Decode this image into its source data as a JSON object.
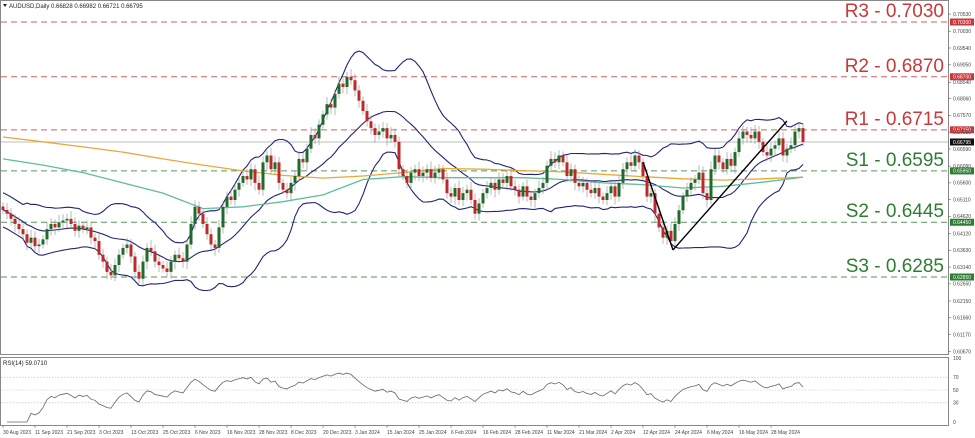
{
  "header": {
    "symbol_line": "AUDUSD,Daily  0.66828 0.66982 0.66721 0.66795"
  },
  "rsi_header": "RSI(14) 59.0710",
  "colors": {
    "resistance": "#c8383a",
    "support": "#2e7d32",
    "bull": "#1f6b2a",
    "bear": "#c0282a",
    "bands": "#23237a",
    "ma_slow": "#e8a93a",
    "ma_fast": "#5fbf98",
    "rsi": "#666666"
  },
  "chart_data": {
    "type": "candlestick",
    "title": "AUDUSD,Daily",
    "ylim": [
      0.6067,
      0.7053
    ],
    "y_ticks": [
      "0.70530",
      "0.70030",
      "0.69540",
      "0.69050",
      "0.68540",
      "0.68060",
      "0.67570",
      "0.67080",
      "0.66590",
      "0.66090",
      "0.65600",
      "0.65110",
      "0.64620",
      "0.64120",
      "0.63630",
      "0.63140",
      "0.62650",
      "0.62150",
      "0.61660",
      "0.61170",
      "0.60670"
    ],
    "x_labels": [
      "30 Aug 2023",
      "11 Sep 2023",
      "21 Sep 2023",
      "3 Oct 2023",
      "13 Oct 2023",
      "25 Oct 2023",
      "6 Nov 2023",
      "16 Nov 2023",
      "28 Nov 2023",
      "8 Dec 2023",
      "20 Dec 2023",
      "3 Jan 2024",
      "15 Jan 2024",
      "25 Jan 2024",
      "6 Feb 2024",
      "16 Feb 2024",
      "28 Feb 2024",
      "11 Mar 2024",
      "21 Mar 2024",
      "2 Apr 2024",
      "12 Apr 2024",
      "24 Apr 2024",
      "6 May 2024",
      "16 May 2024",
      "28 May 2024"
    ],
    "closes": [
      0.6481,
      0.647,
      0.6455,
      0.644,
      0.6425,
      0.641,
      0.6385,
      0.64,
      0.6375,
      0.638,
      0.6395,
      0.6425,
      0.644,
      0.643,
      0.6445,
      0.645,
      0.6455,
      0.644,
      0.642,
      0.6435,
      0.6425,
      0.643,
      0.64,
      0.639,
      0.635,
      0.633,
      0.63,
      0.629,
      0.632,
      0.635,
      0.637,
      0.638,
      0.6345,
      0.63,
      0.628,
      0.633,
      0.637,
      0.636,
      0.633,
      0.632,
      0.631,
      0.63,
      0.633,
      0.635,
      0.634,
      0.633,
      0.638,
      0.644,
      0.649,
      0.647,
      0.644,
      0.641,
      0.638,
      0.637,
      0.643,
      0.649,
      0.652,
      0.651,
      0.654,
      0.656,
      0.658,
      0.657,
      0.66,
      0.656,
      0.654,
      0.662,
      0.664,
      0.66,
      0.662,
      0.656,
      0.654,
      0.653,
      0.656,
      0.658,
      0.663,
      0.662,
      0.666,
      0.67,
      0.669,
      0.673,
      0.676,
      0.679,
      0.678,
      0.682,
      0.685,
      0.684,
      0.687,
      0.686,
      0.683,
      0.68,
      0.677,
      0.674,
      0.672,
      0.67,
      0.671,
      0.672,
      0.669,
      0.67,
      0.668,
      0.66,
      0.658,
      0.656,
      0.659,
      0.66,
      0.658,
      0.659,
      0.66,
      0.6575,
      0.659,
      0.66,
      0.657,
      0.653,
      0.652,
      0.6545,
      0.651,
      0.653,
      0.654,
      0.651,
      0.647,
      0.65,
      0.653,
      0.6545,
      0.656,
      0.654,
      0.657,
      0.656,
      0.658,
      0.655,
      0.654,
      0.652,
      0.655,
      0.652,
      0.651,
      0.653,
      0.6545,
      0.656,
      0.661,
      0.663,
      0.662,
      0.664,
      0.662,
      0.658,
      0.66,
      0.656,
      0.655,
      0.656,
      0.654,
      0.653,
      0.6545,
      0.652,
      0.651,
      0.653,
      0.655,
      0.652,
      0.656,
      0.66,
      0.662,
      0.661,
      0.664,
      0.662,
      0.658,
      0.652,
      0.653,
      0.647,
      0.643,
      0.64,
      0.642,
      0.639,
      0.644,
      0.648,
      0.652,
      0.654,
      0.656,
      0.657,
      0.659,
      0.653,
      0.651,
      0.66,
      0.664,
      0.662,
      0.66,
      0.663,
      0.661,
      0.665,
      0.669,
      0.671,
      0.67,
      0.669,
      0.671,
      0.668,
      0.665,
      0.664,
      0.666,
      0.667,
      0.669,
      0.664,
      0.666,
      0.667,
      0.671,
      0.672,
      0.66795
    ],
    "ma_slow_every_10_bars": [
      0.6694,
      0.668,
      0.6665,
      0.665,
      0.663,
      0.6612,
      0.6595,
      0.6582,
      0.6574,
      0.658,
      0.659,
      0.6602,
      0.66,
      0.6596,
      0.6592,
      0.6585,
      0.6578,
      0.6572,
      0.6568,
      0.6572,
      0.6577
    ],
    "ma_fast_every_10_bars": [
      0.663,
      0.6612,
      0.659,
      0.656,
      0.653,
      0.6485,
      0.649,
      0.6505,
      0.6525,
      0.657,
      0.6578,
      0.6575,
      0.6575,
      0.6575,
      0.657,
      0.656,
      0.6555,
      0.6545,
      0.655,
      0.6562,
      0.6577
    ],
    "current_price": {
      "value": 0.66795,
      "badge": "0.66795"
    },
    "levels": [
      {
        "name": "R3",
        "label": "R3 - 0.7030",
        "value": 0.703,
        "badge": "0.70300",
        "kind": "resistance"
      },
      {
        "name": "R2",
        "label": "R2 - 0.6870",
        "value": 0.687,
        "badge": "0.68700",
        "kind": "resistance"
      },
      {
        "name": "R1",
        "label": "R1 - 0.6715",
        "value": 0.6715,
        "badge": "0.67150",
        "kind": "resistance"
      },
      {
        "name": "S1",
        "label": "S1 - 0.6595",
        "value": 0.6595,
        "badge": "0.65950",
        "kind": "support"
      },
      {
        "name": "S2",
        "label": "S2 - 0.6445",
        "value": 0.6445,
        "badge": "0.64450",
        "kind": "support"
      },
      {
        "name": "S3",
        "label": "S3 - 0.6285",
        "value": 0.6285,
        "badge": "0.62850",
        "kind": "support"
      }
    ],
    "trendlines": [
      {
        "from": {
          "bar": 160,
          "price": 0.6621
        },
        "to": {
          "bar": 167.5,
          "price": 0.6364
        }
      },
      {
        "from": {
          "bar": 167.5,
          "price": 0.6364
        },
        "to": {
          "bar": 196,
          "price": 0.6741
        }
      }
    ],
    "rsi": {
      "period": 14,
      "ylim": [
        0,
        100
      ],
      "levels": [
        70,
        50,
        30
      ],
      "ticks": [
        "100",
        "70",
        "50",
        "30",
        "0"
      ]
    }
  }
}
